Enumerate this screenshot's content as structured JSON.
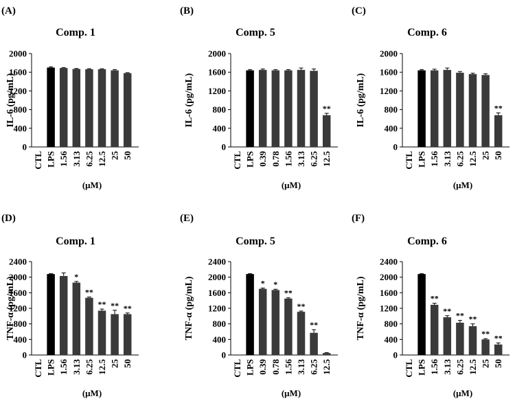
{
  "colors": {
    "ctl_lps_bar": "#000000",
    "treatment_bar": "#3a3a3a",
    "axis": "#000000"
  },
  "chart_data": [
    {
      "type": "bar",
      "panel": "(A)",
      "title": "Comp. 1",
      "ylabel": "IL-6 (pg/mL)",
      "xlabel": "(μM)",
      "ylim": [
        0,
        2000
      ],
      "yticks": [
        "0",
        "400",
        "800",
        "1200",
        "1600",
        "2000"
      ],
      "yticks_values": [
        0,
        400,
        800,
        1200,
        1600,
        2000
      ],
      "categories": [
        "CTL",
        "LPS",
        "1.56",
        "3.13",
        "6.25",
        "12.5",
        "25",
        "50"
      ],
      "values": [
        5,
        1700,
        1690,
        1670,
        1665,
        1665,
        1640,
        1580
      ],
      "errors": [
        0,
        15,
        10,
        10,
        10,
        10,
        15,
        10
      ],
      "significance": [
        "",
        "",
        "",
        "",
        "",
        "",
        "",
        ""
      ]
    },
    {
      "type": "bar",
      "panel": "(B)",
      "title": "Comp. 5",
      "ylabel": "IL-6 (pg/mL)",
      "xlabel": "(μM)",
      "ylim": [
        0,
        2000
      ],
      "yticks": [
        "0",
        "400",
        "800",
        "1200",
        "1600",
        "2000"
      ],
      "yticks_values": [
        0,
        400,
        800,
        1200,
        1600,
        2000
      ],
      "categories": [
        "CTL",
        "LPS",
        "0.39",
        "0.78",
        "1.56",
        "3.13",
        "6.25",
        "12.5"
      ],
      "values": [
        5,
        1640,
        1650,
        1640,
        1640,
        1650,
        1630,
        680
      ],
      "errors": [
        0,
        15,
        20,
        15,
        15,
        40,
        40,
        40
      ],
      "significance": [
        "",
        "",
        "",
        "",
        "",
        "",
        "",
        "**"
      ]
    },
    {
      "type": "bar",
      "panel": "(C)",
      "title": "Comp. 6",
      "ylabel": "IL-6 (pg/mL)",
      "xlabel": "(μM)",
      "ylim": [
        0,
        2000
      ],
      "yticks": [
        "0",
        "400",
        "800",
        "1200",
        "1600",
        "2000"
      ],
      "yticks_values": [
        0,
        400,
        800,
        1200,
        1600,
        2000
      ],
      "categories": [
        "CTL",
        "LPS",
        "1.56",
        "3.13",
        "6.25",
        "12.5",
        "25",
        "50"
      ],
      "values": [
        5,
        1640,
        1640,
        1650,
        1590,
        1560,
        1540,
        680
      ],
      "errors": [
        0,
        15,
        25,
        40,
        25,
        20,
        25,
        50
      ],
      "significance": [
        "",
        "",
        "",
        "",
        "",
        "",
        "",
        "**"
      ]
    },
    {
      "type": "bar",
      "panel": "(D)",
      "title": "Comp. 1",
      "ylabel": "TNF-α (pg/mL)",
      "xlabel": "(μM)",
      "ylim": [
        0,
        2400
      ],
      "yticks": [
        "0",
        "400",
        "800",
        "1200",
        "1600",
        "2000",
        "2400"
      ],
      "yticks_values": [
        0,
        400,
        800,
        1200,
        1600,
        2000,
        2400
      ],
      "categories": [
        "CTL",
        "LPS",
        "1.56",
        "3.13",
        "6.25",
        "12.5",
        "25",
        "50"
      ],
      "values": [
        5,
        2080,
        2030,
        1860,
        1470,
        1140,
        1050,
        1050
      ],
      "errors": [
        0,
        10,
        80,
        30,
        20,
        40,
        100,
        30
      ],
      "significance": [
        "",
        "",
        "",
        "*",
        "**",
        "**",
        "**",
        "**"
      ]
    },
    {
      "type": "bar",
      "panel": "(E)",
      "title": "Comp. 5",
      "ylabel": "TNF-α (pg/mL)",
      "xlabel": "(μM)",
      "ylim": [
        0,
        2400
      ],
      "yticks": [
        "0",
        "400",
        "800",
        "1200",
        "1600",
        "2000",
        "2400"
      ],
      "yticks_values": [
        0,
        400,
        800,
        1200,
        1600,
        2000,
        2400
      ],
      "categories": [
        "CTL",
        "LPS",
        "0.39",
        "0.78",
        "1.56",
        "3.13",
        "6.25",
        "12.5"
      ],
      "values": [
        5,
        2080,
        1700,
        1670,
        1450,
        1110,
        570,
        50
      ],
      "errors": [
        0,
        10,
        20,
        20,
        20,
        20,
        80,
        10
      ],
      "significance": [
        "",
        "",
        "*",
        "*",
        "**",
        "**",
        "**",
        ""
      ]
    },
    {
      "type": "bar",
      "panel": "(F)",
      "title": "Comp. 6",
      "ylabel": "TNF-α (pg/mL)",
      "xlabel": "(μM)",
      "ylim": [
        0,
        2400
      ],
      "yticks": [
        "0",
        "400",
        "800",
        "1200",
        "1600",
        "2000",
        "2400"
      ],
      "yticks_values": [
        0,
        400,
        800,
        1200,
        1600,
        2000,
        2400
      ],
      "categories": [
        "CTL",
        "LPS",
        "1.56",
        "3.13",
        "6.25",
        "12.5",
        "25",
        "50"
      ],
      "values": [
        5,
        2080,
        1290,
        970,
        830,
        740,
        400,
        270
      ],
      "errors": [
        0,
        10,
        40,
        40,
        60,
        60,
        20,
        40
      ],
      "significance": [
        "",
        "",
        "**",
        "**",
        "**",
        "**",
        "**",
        "**"
      ]
    }
  ]
}
